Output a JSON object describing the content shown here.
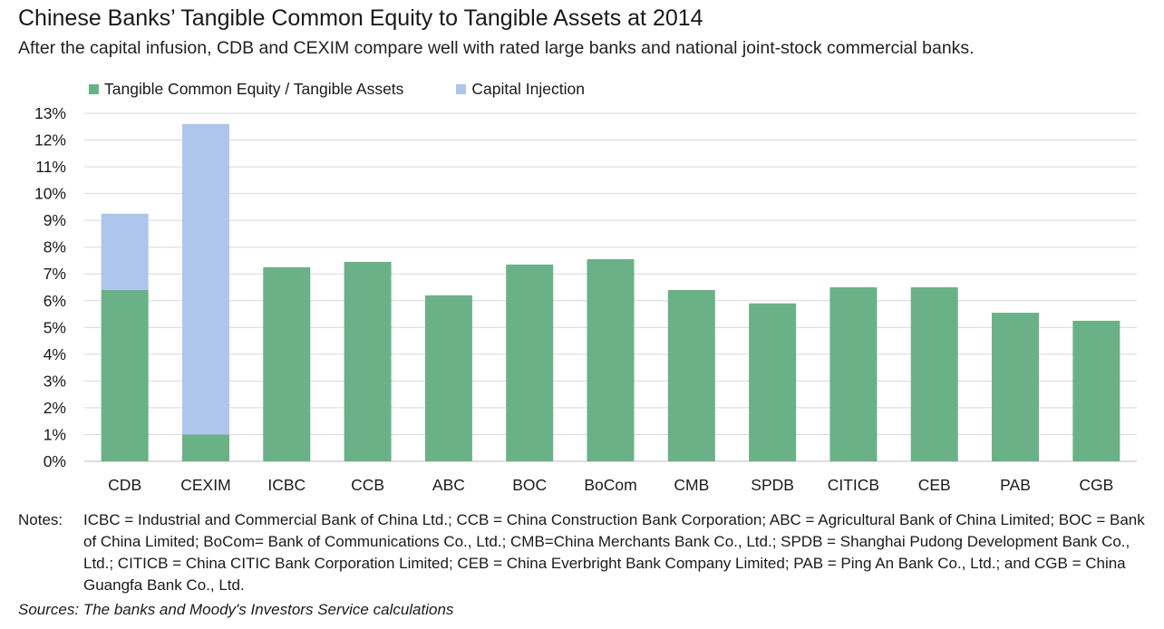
{
  "title": "Chinese Banks’ Tangible Common Equity to Tangible Assets at 2014",
  "subtitle": "After the capital infusion, CDB and CEXIM compare well with rated large banks and national joint-stock commercial banks.",
  "notes": {
    "label": "Notes:",
    "text": "ICBC = Industrial and Commercial Bank of China Ltd.; CCB = China Construction Bank Corporation; ABC = Agricultural Bank of China Limited; BOC = Bank of China Limited; BoCom= Bank of Communications Co., Ltd.; CMB=China Merchants Bank Co., Ltd.; SPDB = Shanghai Pudong Development Bank Co., Ltd.; CITICB = China CITIC Bank Corporation Limited; CEB = China Everbright Bank Company Limited; PAB = Ping An Bank Co., Ltd.; and CGB = China Guangfa Bank Co., Ltd."
  },
  "sources": "Sources: The banks and Moody's Investors Service calculations",
  "chart_data": {
    "type": "bar",
    "stacked": true,
    "categories": [
      "CDB",
      "CEXIM",
      "ICBC",
      "CCB",
      "ABC",
      "BOC",
      "BoCom",
      "CMB",
      "SPDB",
      "CITICB",
      "CEB",
      "PAB",
      "CGB"
    ],
    "series": [
      {
        "name": "Tangible Common Equity / Tangible Assets",
        "color": "#6ab187",
        "values": [
          6.4,
          1.0,
          7.25,
          7.45,
          6.2,
          7.35,
          7.55,
          6.4,
          5.9,
          6.5,
          6.5,
          5.55,
          5.25
        ]
      },
      {
        "name": "Capital Injection",
        "color": "#aec6ec",
        "values": [
          2.85,
          11.6,
          0,
          0,
          0,
          0,
          0,
          0,
          0,
          0,
          0,
          0,
          0
        ]
      }
    ],
    "ylim": [
      0,
      13
    ],
    "yticks": [
      "0%",
      "1%",
      "2%",
      "3%",
      "4%",
      "5%",
      "6%",
      "7%",
      "8%",
      "9%",
      "10%",
      "11%",
      "12%",
      "13%"
    ],
    "grid": true,
    "legend": "top-left",
    "xlabel": "",
    "ylabel": ""
  }
}
